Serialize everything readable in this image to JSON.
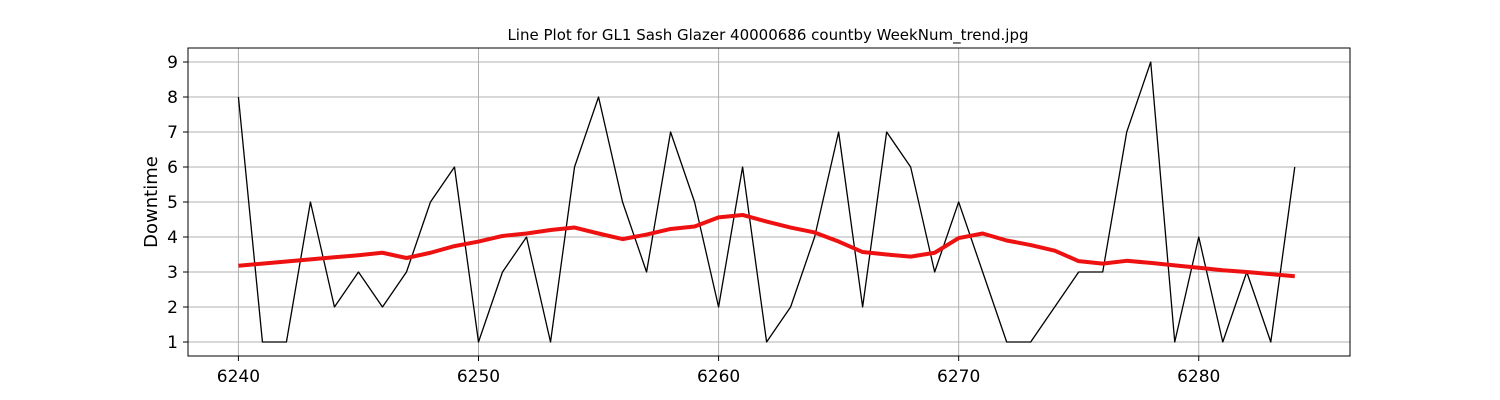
{
  "chart_data": {
    "type": "line",
    "title": "Line Plot for GL1 Sash Glazer 40000686 countby WeekNum_trend.jpg",
    "xlabel": "",
    "ylabel": "Downtime",
    "xlim": [
      6237.9,
      6286.3
    ],
    "ylim": [
      0.6,
      9.4
    ],
    "xticks": [
      6240,
      6250,
      6260,
      6270,
      6280
    ],
    "yticks": [
      1,
      2,
      3,
      4,
      5,
      6,
      7,
      8,
      9
    ],
    "grid": true,
    "x": [
      6240,
      6241,
      6242,
      6243,
      6244,
      6245,
      6246,
      6247,
      6248,
      6249,
      6250,
      6251,
      6252,
      6253,
      6254,
      6255,
      6256,
      6257,
      6258,
      6259,
      6260,
      6261,
      6262,
      6263,
      6264,
      6265,
      6266,
      6267,
      6268,
      6269,
      6270,
      6271,
      6272,
      6273,
      6274,
      6275,
      6276,
      6277,
      6278,
      6279,
      6280,
      6281,
      6282,
      6283,
      6284
    ],
    "series": [
      {
        "color": "#000000",
        "values": [
          8,
          1,
          1,
          5,
          2,
          3,
          2,
          3,
          5,
          6,
          1,
          3,
          4,
          1,
          6,
          8,
          5,
          3,
          7,
          5,
          2,
          6,
          1,
          2,
          4,
          7,
          2,
          7,
          6,
          3,
          5,
          3,
          1,
          1,
          2,
          3,
          3,
          7,
          9,
          1,
          4,
          1,
          3,
          1,
          6
        ]
      },
      {
        "color": "#ee1111",
        "values": [
          3.18,
          3.24,
          3.3,
          3.36,
          3.42,
          3.48,
          3.55,
          3.4,
          3.55,
          3.74,
          3.87,
          4.03,
          4.1,
          4.2,
          4.27,
          4.1,
          3.94,
          4.07,
          4.23,
          4.3,
          4.56,
          4.63,
          4.44,
          4.27,
          4.13,
          3.87,
          3.57,
          3.5,
          3.44,
          3.55,
          3.97,
          4.1,
          3.9,
          3.77,
          3.61,
          3.31,
          3.24,
          3.32,
          3.26,
          3.19,
          3.12,
          3.05,
          3.0,
          2.94,
          2.88
        ]
      }
    ]
  }
}
